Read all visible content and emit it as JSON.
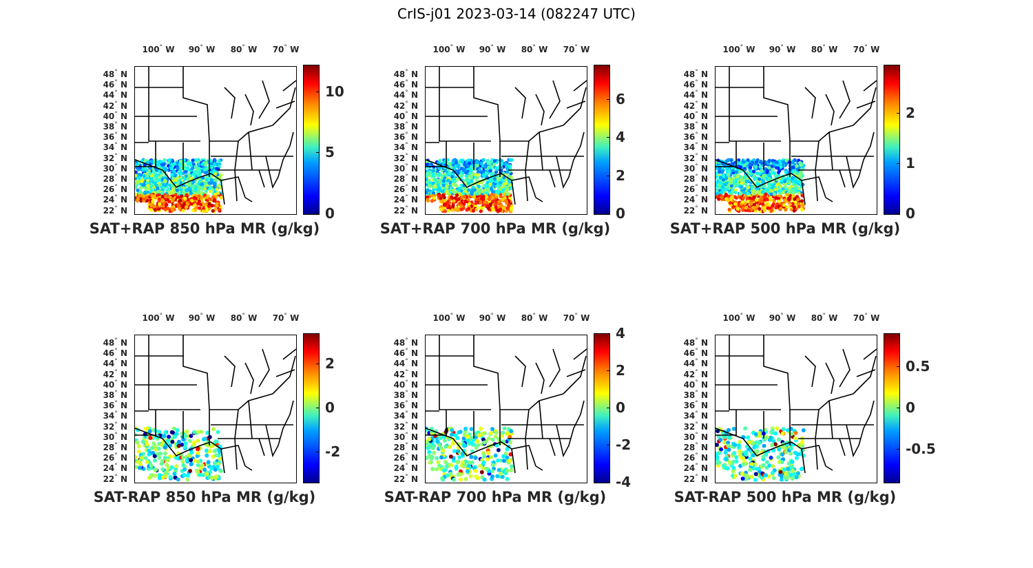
{
  "figure_title": "CrIS-j01 2023-03-14 (082247 UTC)",
  "lon_labels": [
    "100",
    "90",
    "80",
    "70"
  ],
  "lon_suffix": "W",
  "lat_labels": [
    "48",
    "46",
    "44",
    "42",
    "40",
    "38",
    "36",
    "34",
    "32",
    "30",
    "28",
    "26",
    "24",
    "22"
  ],
  "lat_suffix": "N",
  "panels": [
    {
      "title": "SAT+RAP 850 hPa MR (g/kg)",
      "colorbar": {
        "min": 0,
        "max": 12.2,
        "ticks": [
          "0",
          "5",
          "10"
        ],
        "tick_values": [
          0,
          5,
          10
        ]
      }
    },
    {
      "title": "SAT+RAP 700 hPa MR (g/kg)",
      "colorbar": {
        "min": 0,
        "max": 7.8,
        "ticks": [
          "0",
          "2",
          "4",
          "6"
        ],
        "tick_values": [
          0,
          2,
          4,
          6
        ]
      }
    },
    {
      "title": "SAT+RAP 500 hPa MR (g/kg)",
      "colorbar": {
        "min": 0,
        "max": 2.95,
        "ticks": [
          "0",
          "1",
          "2"
        ],
        "tick_values": [
          0,
          1,
          2
        ]
      }
    },
    {
      "title": "SAT-RAP 850 hPa MR (g/kg)",
      "colorbar": {
        "min": -3.4,
        "max": 3.4,
        "ticks": [
          "-2",
          "0",
          "2"
        ],
        "tick_values": [
          -2,
          0,
          2
        ]
      }
    },
    {
      "title": "SAT-RAP 700 hPa MR (g/kg)",
      "colorbar": {
        "min": -4,
        "max": 4,
        "ticks": [
          "-4",
          "-2",
          "0",
          "2",
          "4"
        ],
        "tick_values": [
          -4,
          -2,
          0,
          2,
          4
        ]
      }
    },
    {
      "title": "SAT-RAP 500 hPa MR (g/kg)",
      "colorbar": {
        "min": -0.9,
        "max": 0.9,
        "ticks": [
          "-0.5",
          "0",
          "0.5"
        ],
        "tick_values": [
          -0.5,
          0,
          0.5
        ]
      }
    }
  ]
}
